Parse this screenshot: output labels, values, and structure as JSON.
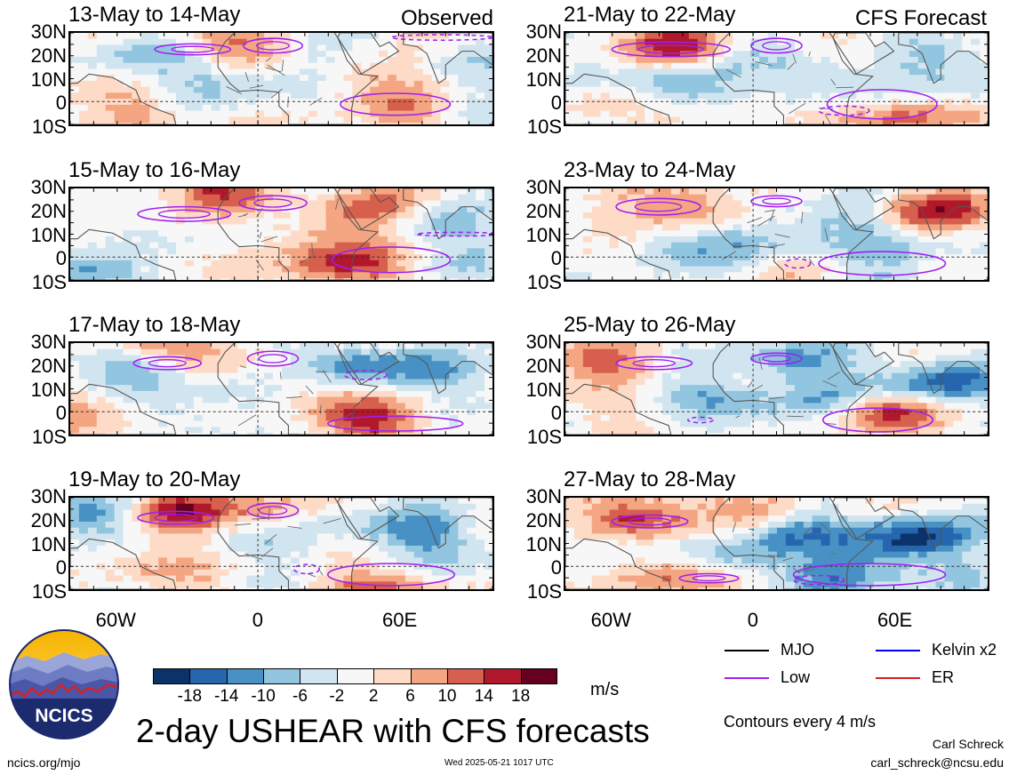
{
  "left_corner": "Observed",
  "right_corner": "CFS Forecast",
  "left_panels": [
    {
      "title": "13-May to 14-May"
    },
    {
      "title": "15-May to 16-May"
    },
    {
      "title": "17-May to 18-May"
    },
    {
      "title": "19-May to 20-May"
    }
  ],
  "right_panels": [
    {
      "title": "21-May to 22-May"
    },
    {
      "title": "23-May to 24-May"
    },
    {
      "title": "25-May to 26-May"
    },
    {
      "title": "27-May to 28-May"
    }
  ],
  "lat_labels": [
    "30N",
    "20N",
    "10N",
    "0",
    "10S"
  ],
  "lon_labels": [
    "60W",
    "0",
    "60E"
  ],
  "colorbar": {
    "colors": [
      "#0c3369",
      "#2566ae",
      "#4891c5",
      "#92c5df",
      "#d1e5f0",
      "#f7f7f7",
      "#fddbc7",
      "#f4a582",
      "#d6604d",
      "#b2182b",
      "#67001f"
    ],
    "labels": [
      "-18",
      "-14",
      "-10",
      "-6",
      "-2",
      "2",
      "6",
      "10",
      "14",
      "18"
    ],
    "unit": "m/s"
  },
  "legend": [
    {
      "label": "MJO",
      "color": "#000000"
    },
    {
      "label": "Kelvin x2",
      "color": "#0000ff"
    },
    {
      "label": "Low",
      "color": "#a020f0"
    },
    {
      "label": "ER",
      "color": "#d42020"
    }
  ],
  "contour_note": "Contours every 4 m/s",
  "title": "2-day USHEAR with CFS forecasts",
  "logo_text": "NCICS",
  "url": "ncics.org/mjo",
  "timestamp": "Wed 2025-05-21 1017 UTC",
  "author": "Carl Schreck",
  "email": "carl_schreck@ncsu.edu"
}
